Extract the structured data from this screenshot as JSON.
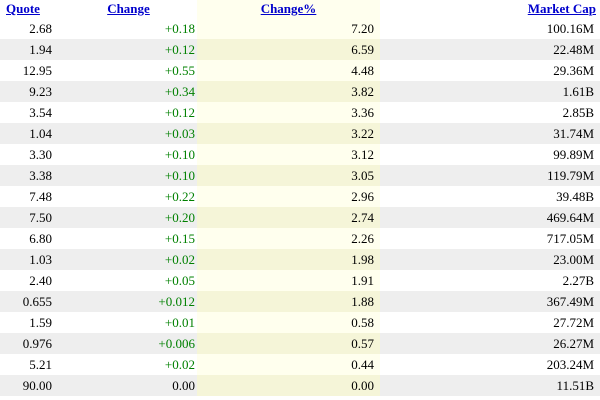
{
  "table": {
    "headers": {
      "quote": "Quote",
      "change": "Change",
      "change_pct": "Change%",
      "market_cap": "Market Cap"
    },
    "rows": [
      {
        "quote": "2.68",
        "change": "+0.18",
        "change_pct": "7.20",
        "market_cap": "100.16M"
      },
      {
        "quote": "1.94",
        "change": "+0.12",
        "change_pct": "6.59",
        "market_cap": "22.48M"
      },
      {
        "quote": "12.95",
        "change": "+0.55",
        "change_pct": "4.48",
        "market_cap": "29.36M"
      },
      {
        "quote": "9.23",
        "change": "+0.34",
        "change_pct": "3.82",
        "market_cap": "1.61B"
      },
      {
        "quote": "3.54",
        "change": "+0.12",
        "change_pct": "3.36",
        "market_cap": "2.85B"
      },
      {
        "quote": "1.04",
        "change": "+0.03",
        "change_pct": "3.22",
        "market_cap": "31.74M"
      },
      {
        "quote": "3.30",
        "change": "+0.10",
        "change_pct": "3.12",
        "market_cap": "99.89M"
      },
      {
        "quote": "3.38",
        "change": "+0.10",
        "change_pct": "3.05",
        "market_cap": "119.79M"
      },
      {
        "quote": "7.48",
        "change": "+0.22",
        "change_pct": "2.96",
        "market_cap": "39.48B"
      },
      {
        "quote": "7.50",
        "change": "+0.20",
        "change_pct": "2.74",
        "market_cap": "469.64M"
      },
      {
        "quote": "6.80",
        "change": "+0.15",
        "change_pct": "2.26",
        "market_cap": "717.05M"
      },
      {
        "quote": "1.03",
        "change": "+0.02",
        "change_pct": "1.98",
        "market_cap": "23.00M"
      },
      {
        "quote": "2.40",
        "change": "+0.05",
        "change_pct": "1.91",
        "market_cap": "2.27B"
      },
      {
        "quote": "0.655",
        "change": "+0.012",
        "change_pct": "1.88",
        "market_cap": "367.49M"
      },
      {
        "quote": "1.59",
        "change": "+0.01",
        "change_pct": "0.58",
        "market_cap": "27.72M"
      },
      {
        "quote": "0.976",
        "change": "+0.006",
        "change_pct": "0.57",
        "market_cap": "26.27M"
      },
      {
        "quote": "5.21",
        "change": "+0.02",
        "change_pct": "0.44",
        "market_cap": "203.24M"
      },
      {
        "quote": "90.00",
        "change": "0.00",
        "change_pct": "0.00",
        "market_cap": "11.51B"
      }
    ]
  },
  "colors": {
    "header_link": "#0000cc",
    "positive": "#008000",
    "neutral": "#000000",
    "row_alt": "#eeeeee",
    "pct_column": "#ffffee"
  }
}
